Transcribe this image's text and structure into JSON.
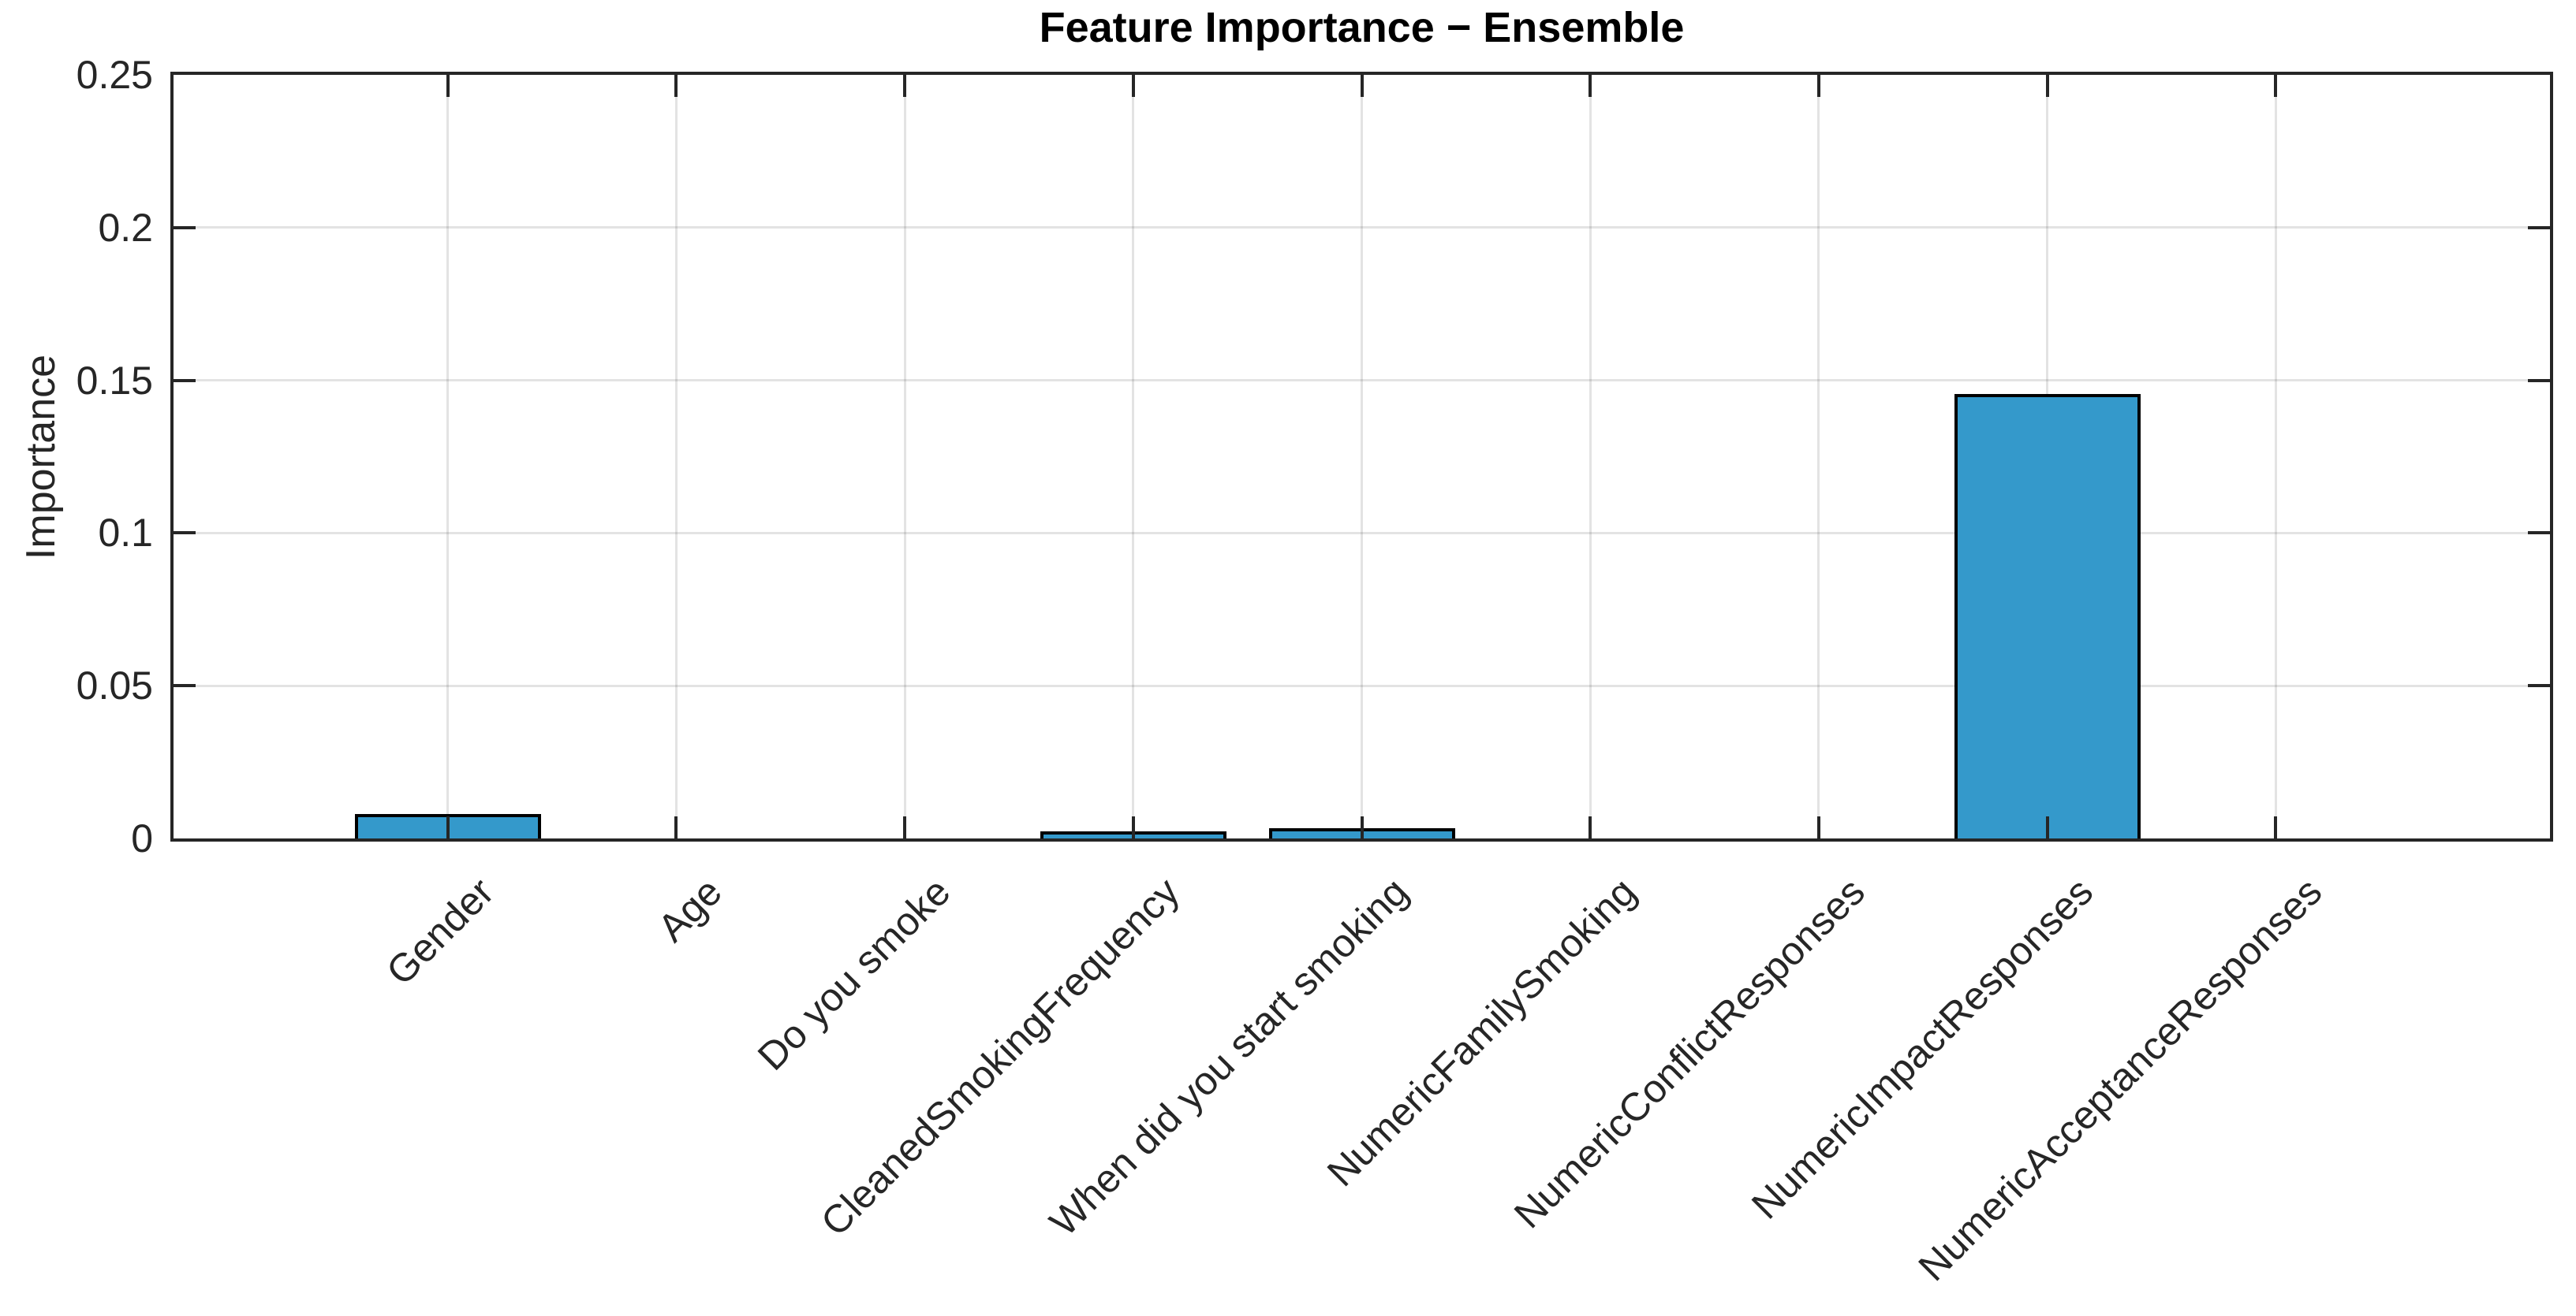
{
  "chart_data": {
    "type": "bar",
    "title": "Feature Importance − Ensemble",
    "xlabel": "",
    "ylabel": "Importance",
    "categories": [
      "Gender",
      "Age",
      "Do you smoke",
      "CleanedSmokingFrequency",
      "When did you start smoking",
      "NumericFamilySmoking",
      "NumericConflictResponses",
      "NumericImpactResponses",
      "NumericAcceptanceResponses"
    ],
    "values": [
      0.008,
      0,
      0,
      0.0024,
      0.0033,
      0,
      0,
      0.1456,
      0
    ],
    "ylim": [
      0,
      0.25
    ],
    "ytick_values": [
      0,
      0.05,
      0.1,
      0.15,
      0.2,
      0.25
    ],
    "ytick_labels": [
      "0",
      "0.05",
      "0.1",
      "0.15",
      "0.2",
      "0.25"
    ],
    "grid": true,
    "box": true,
    "x_tick_label_rotation_deg": 45,
    "legend": "none",
    "colors": {
      "bar_fill": "#3499CB",
      "bar_edge": "#000000",
      "axis": "#262626",
      "grid": "#262626",
      "grid_alpha": 0.13,
      "title_color": "#000000",
      "background": "#FFFFFF"
    }
  }
}
